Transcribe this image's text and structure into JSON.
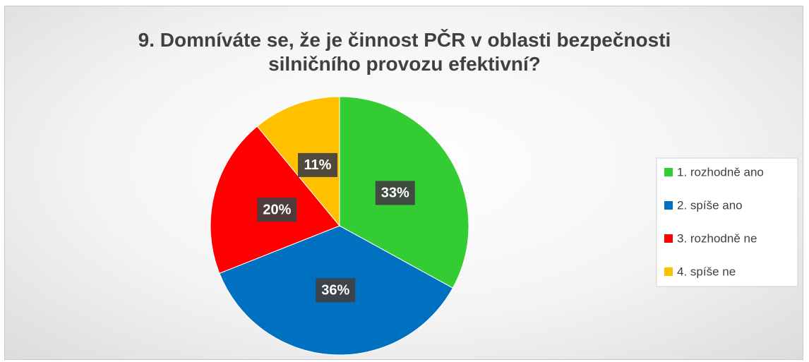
{
  "chart_data": {
    "type": "pie",
    "title": "9. Domníváte se, že je činnost PČR v oblasti bezpečnosti silničního provozu efektivní?",
    "categories": [
      "1. rozhodně ano",
      "2. spíše ano",
      "3. rozhodně ne",
      "4. spíše ne"
    ],
    "values": [
      33,
      36,
      20,
      11
    ],
    "value_labels": [
      "33%",
      "36%",
      "20%",
      "11%"
    ],
    "colors": [
      "#33cc33",
      "#0070c0",
      "#ff0000",
      "#ffc000"
    ],
    "legend": "right"
  }
}
